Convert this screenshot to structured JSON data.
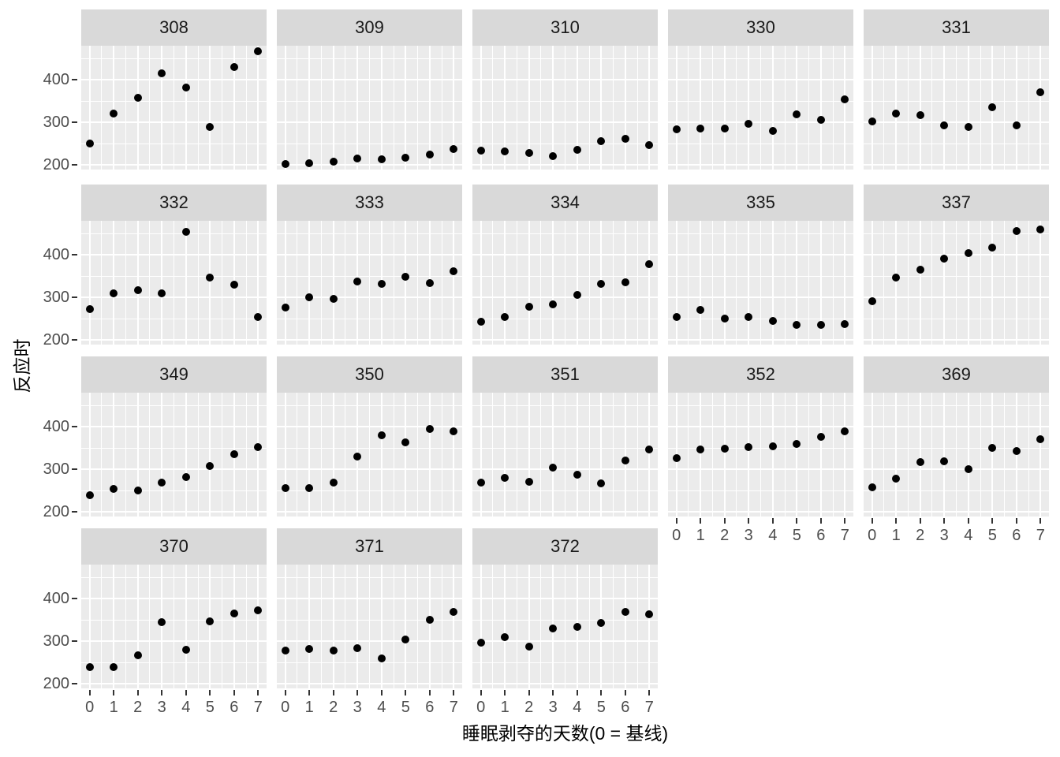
{
  "figure": {
    "kind": "ggplot-style faceted scatter plot",
    "background": "#ffffff"
  },
  "theme": {
    "panel_background": "#ebebeb",
    "strip_background": "#d9d9d9",
    "grid_color": "#ffffff",
    "point_color": "#000000",
    "axis_text_color": "#4d4d4d",
    "strip_text_color": "#1a1a1a",
    "axis_title_color": "#000000",
    "tick_mark_color": "#333333"
  },
  "chart_data": {
    "type": "scatter",
    "title": "",
    "xlabel": "睡眠剥夺的天数(0 = 基线)",
    "ylabel": "反应时",
    "legend_position": "none",
    "facet_layout": {
      "columns": 5,
      "rows": 4,
      "facets_total": 18
    },
    "x": [
      0,
      1,
      2,
      3,
      4,
      5,
      6,
      7
    ],
    "x_ticks": [
      "0",
      "1",
      "2",
      "3",
      "4",
      "5",
      "6",
      "7"
    ],
    "y_ticks": [
      "200",
      "300",
      "400"
    ],
    "y_tick_values": [
      200,
      300,
      400
    ],
    "y_minor_values": [
      250,
      350,
      450
    ],
    "x_minor_values": [
      0.5,
      1.5,
      2.5,
      3.5,
      4.5,
      5.5,
      6.5
    ],
    "xlim": [
      -0.35,
      7.35
    ],
    "ylim": [
      189.8,
      479.6
    ],
    "grid": "white major and minor gridlines on grey panel",
    "series": [
      {
        "name": "308",
        "values": [
          250.8,
          321.4,
          356.9,
          414.7,
          382.2,
          290.1,
          430.6,
          466.4
        ]
      },
      {
        "name": "309",
        "values": [
          203.0,
          204.7,
          207.7,
          216.0,
          213.6,
          217.7,
          224.3,
          237.3
        ]
      },
      {
        "name": "310",
        "values": [
          234.3,
          232.8,
          229.3,
          220.5,
          235.4,
          255.8,
          261.0,
          247.5
        ]
      },
      {
        "name": "330",
        "values": [
          283.9,
          285.1,
          285.8,
          297.6,
          280.2,
          318.3,
          305.3,
          354.0
        ]
      },
      {
        "name": "331",
        "values": [
          301.8,
          320.1,
          316.3,
          293.3,
          290.1,
          334.8,
          293.7,
          371.6
        ]
      },
      {
        "name": "332",
        "values": [
          273.0,
          309.8,
          317.5,
          310.0,
          454.2,
          346.8,
          330.3,
          253.9
        ]
      },
      {
        "name": "333",
        "values": [
          276.8,
          299.8,
          297.2,
          338.2,
          332.0,
          348.8,
          333.4,
          362.0
        ]
      },
      {
        "name": "334",
        "values": [
          243.4,
          254.7,
          279.0,
          284.2,
          305.5,
          331.5,
          335.7,
          377.3
        ]
      },
      {
        "name": "335",
        "values": [
          254.5,
          270.8,
          251.5,
          254.6,
          245.5,
          235.3,
          235.8,
          237.2
        ]
      },
      {
        "name": "337",
        "values": [
          291.6,
          346.1,
          365.7,
          391.8,
          404.3,
          416.7,
          455.9,
          458.9
        ]
      },
      {
        "name": "349",
        "values": [
          238.9,
          254.9,
          250.7,
          269.8,
          281.6,
          308.1,
          336.3,
          351.6
        ]
      },
      {
        "name": "350",
        "values": [
          256.2,
          255.5,
          268.9,
          329.7,
          379.4,
          362.9,
          394.5,
          389.1
        ]
      },
      {
        "name": "351",
        "values": [
          269.9,
          280.6,
          271.8,
          304.6,
          287.7,
          266.6,
          321.5,
          347.6
        ]
      },
      {
        "name": "352",
        "values": [
          326.9,
          346.9,
          348.7,
          352.8,
          354.4,
          360.4,
          375.6,
          388.5
        ]
      },
      {
        "name": "369",
        "values": [
          257.2,
          277.7,
          317.3,
          319.8,
          300.6,
          350.6,
          342.6,
          369.9
        ]
      },
      {
        "name": "370",
        "values": [
          238.9,
          240.5,
          267.5,
          344.2,
          281.1,
          347.6,
          365.2,
          372.2
        ]
      },
      {
        "name": "371",
        "values": [
          277.9,
          281.8,
          279.2,
          284.5,
          259.3,
          304.6,
          350.8,
          369.5
        ]
      },
      {
        "name": "372",
        "values": [
          297.6,
          310.6,
          287.2,
          329.6,
          334.5,
          343.2,
          369.1,
          364.1
        ]
      }
    ]
  }
}
